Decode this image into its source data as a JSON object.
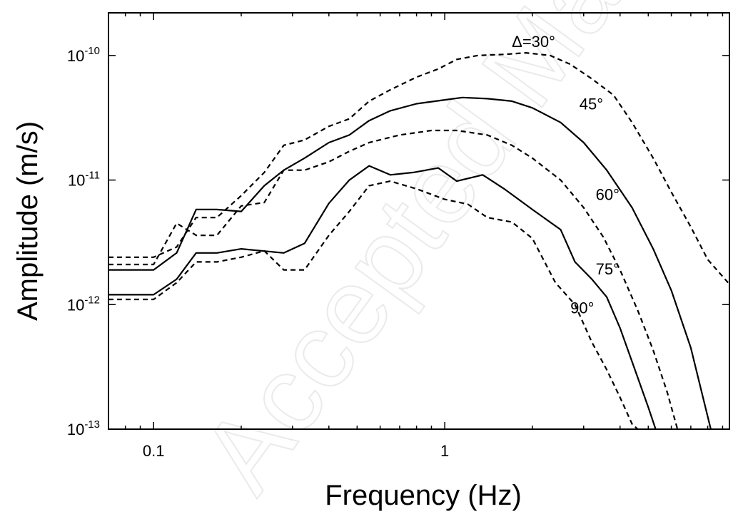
{
  "chart_data": {
    "type": "line",
    "xlabel": "Frequency (Hz)",
    "ylabel": "Amplitude (m/s)",
    "x_scale": "log",
    "y_scale": "log",
    "xlim": [
      0.07,
      9.5
    ],
    "ylim": [
      1e-13,
      2.2e-10
    ],
    "grid": false,
    "legend": "none",
    "x_ticks": [
      {
        "value": 0.1,
        "label": "0.1"
      },
      {
        "value": 1,
        "label": "1"
      }
    ],
    "y_ticks": [
      {
        "value": 1e-10,
        "base": "10",
        "exp": "-10"
      },
      {
        "value": 1e-11,
        "base": "10",
        "exp": "-11"
      },
      {
        "value": 1e-12,
        "base": "10",
        "exp": "-12"
      },
      {
        "value": 1e-13,
        "base": "10",
        "exp": "-13"
      }
    ],
    "series": [
      {
        "name": "Δ=30°",
        "style": "dashed",
        "points": [
          [
            0.07,
            2.4e-12
          ],
          [
            0.1,
            2.4e-12
          ],
          [
            0.12,
            2.9e-12
          ],
          [
            0.14,
            5e-12
          ],
          [
            0.165,
            5e-12
          ],
          [
            0.2,
            7.5e-12
          ],
          [
            0.24,
            1.15e-11
          ],
          [
            0.28,
            1.9e-11
          ],
          [
            0.33,
            2.1e-11
          ],
          [
            0.4,
            2.7e-11
          ],
          [
            0.47,
            3.1e-11
          ],
          [
            0.55,
            4.3e-11
          ],
          [
            0.65,
            5.3e-11
          ],
          [
            0.8,
            6.7e-11
          ],
          [
            0.95,
            7.8e-11
          ],
          [
            1.1,
            9.3e-11
          ],
          [
            1.3,
            1e-10
          ],
          [
            1.6,
            1.02e-10
          ],
          [
            1.9,
            1.05e-10
          ],
          [
            2.3,
            1e-10
          ],
          [
            2.7,
            8.5e-11
          ],
          [
            3.2,
            6.5e-11
          ],
          [
            3.8,
            4.8e-11
          ],
          [
            4.4,
            2.9e-11
          ],
          [
            5.2,
            1.5e-11
          ],
          [
            6.0,
            8e-12
          ],
          [
            7.0,
            4.2e-12
          ],
          [
            8.0,
            2.3e-12
          ],
          [
            9.4,
            1.5e-12
          ]
        ]
      },
      {
        "name": "45°",
        "style": "solid",
        "points": [
          [
            0.07,
            1.9e-12
          ],
          [
            0.1,
            1.9e-12
          ],
          [
            0.12,
            2.6e-12
          ],
          [
            0.14,
            5.8e-12
          ],
          [
            0.165,
            5.8e-12
          ],
          [
            0.2,
            5.6e-12
          ],
          [
            0.24,
            9e-12
          ],
          [
            0.28,
            1.2e-11
          ],
          [
            0.33,
            1.5e-11
          ],
          [
            0.4,
            2e-11
          ],
          [
            0.47,
            2.3e-11
          ],
          [
            0.55,
            3e-11
          ],
          [
            0.65,
            3.6e-11
          ],
          [
            0.8,
            4.1e-11
          ],
          [
            1.0,
            4.4e-11
          ],
          [
            1.15,
            4.6e-11
          ],
          [
            1.4,
            4.5e-11
          ],
          [
            1.7,
            4.3e-11
          ],
          [
            2.0,
            3.8e-11
          ],
          [
            2.5,
            2.9e-11
          ],
          [
            3.0,
            2e-11
          ],
          [
            3.6,
            1.2e-11
          ],
          [
            4.4,
            6e-12
          ],
          [
            5.2,
            2.8e-12
          ],
          [
            6.0,
            1.3e-12
          ],
          [
            7.0,
            4.5e-13
          ],
          [
            7.8,
            1.6e-13
          ],
          [
            8.2,
            1e-13
          ]
        ]
      },
      {
        "name": "60°",
        "style": "dashed",
        "points": [
          [
            0.07,
            2.1e-12
          ],
          [
            0.1,
            2.1e-12
          ],
          [
            0.12,
            4.5e-12
          ],
          [
            0.14,
            3.6e-12
          ],
          [
            0.165,
            3.6e-12
          ],
          [
            0.2,
            6.2e-12
          ],
          [
            0.24,
            6.6e-12
          ],
          [
            0.28,
            1.2e-11
          ],
          [
            0.33,
            1.2e-11
          ],
          [
            0.4,
            1.4e-11
          ],
          [
            0.47,
            1.7e-11
          ],
          [
            0.55,
            2e-11
          ],
          [
            0.7,
            2.3e-11
          ],
          [
            0.9,
            2.5e-11
          ],
          [
            1.1,
            2.5e-11
          ],
          [
            1.4,
            2.3e-11
          ],
          [
            1.7,
            1.9e-11
          ],
          [
            2.0,
            1.5e-11
          ],
          [
            2.5,
            1e-11
          ],
          [
            3.0,
            6e-12
          ],
          [
            3.5,
            3.5e-12
          ],
          [
            4.0,
            1.9e-12
          ],
          [
            4.6,
            9e-13
          ],
          [
            5.2,
            4.3e-13
          ],
          [
            5.8,
            2e-13
          ],
          [
            6.3,
            1e-13
          ]
        ]
      },
      {
        "name": "75°",
        "style": "solid",
        "points": [
          [
            0.07,
            1.2e-12
          ],
          [
            0.1,
            1.2e-12
          ],
          [
            0.12,
            1.6e-12
          ],
          [
            0.14,
            2.6e-12
          ],
          [
            0.165,
            2.6e-12
          ],
          [
            0.2,
            2.8e-12
          ],
          [
            0.28,
            2.6e-12
          ],
          [
            0.33,
            3.1e-12
          ],
          [
            0.4,
            6.5e-12
          ],
          [
            0.47,
            1e-11
          ],
          [
            0.55,
            1.3e-11
          ],
          [
            0.65,
            1.1e-11
          ],
          [
            0.78,
            1.15e-11
          ],
          [
            0.95,
            1.25e-11
          ],
          [
            1.1,
            9.8e-12
          ],
          [
            1.35,
            1.1e-11
          ],
          [
            1.6,
            8.5e-12
          ],
          [
            2.0,
            5.8e-12
          ],
          [
            2.5,
            4e-12
          ],
          [
            2.8,
            2.2e-12
          ],
          [
            3.2,
            1.6e-12
          ],
          [
            3.6,
            1.15e-12
          ],
          [
            4.0,
            6.5e-13
          ],
          [
            4.5,
            3e-13
          ],
          [
            5.0,
            1.5e-13
          ],
          [
            5.3,
            1e-13
          ]
        ]
      },
      {
        "name": "90°",
        "style": "dashed",
        "points": [
          [
            0.07,
            1.1e-12
          ],
          [
            0.1,
            1.1e-12
          ],
          [
            0.12,
            1.5e-12
          ],
          [
            0.14,
            2.2e-12
          ],
          [
            0.165,
            2.2e-12
          ],
          [
            0.2,
            2.4e-12
          ],
          [
            0.24,
            2.7e-12
          ],
          [
            0.28,
            1.9e-12
          ],
          [
            0.33,
            1.9e-12
          ],
          [
            0.4,
            3.6e-12
          ],
          [
            0.47,
            5.6e-12
          ],
          [
            0.55,
            9e-12
          ],
          [
            0.65,
            9.8e-12
          ],
          [
            0.8,
            8.5e-12
          ],
          [
            1.0,
            7e-12
          ],
          [
            1.2,
            6.4e-12
          ],
          [
            1.4,
            5e-12
          ],
          [
            1.7,
            4.6e-12
          ],
          [
            2.0,
            3.4e-12
          ],
          [
            2.4,
            1.5e-12
          ],
          [
            2.8,
            1e-12
          ],
          [
            3.2,
            5e-13
          ],
          [
            3.6,
            3e-13
          ],
          [
            4.0,
            1.8e-13
          ],
          [
            4.4,
            1.1e-13
          ],
          [
            4.6,
            1e-13
          ]
        ]
      }
    ],
    "annotations": [
      {
        "series": "Δ=30°",
        "text": "Δ=30°",
        "x": 1.7,
        "y": 1.17e-10
      },
      {
        "series": "45°",
        "text": "45°",
        "x": 2.9,
        "y": 3.7e-11
      },
      {
        "series": "60°",
        "text": "60°",
        "x": 3.3,
        "y": 6.9e-12
      },
      {
        "series": "75°",
        "text": "75°",
        "x": 3.3,
        "y": 1.75e-12
      },
      {
        "series": "90°",
        "text": "90°",
        "x": 2.7,
        "y": 8.5e-13
      }
    ]
  },
  "watermark": {
    "text": "Accepted Manuscript",
    "color": "#d9d9d9"
  },
  "colors": {
    "line": "#000000",
    "axis": "#000000",
    "background": "#ffffff"
  }
}
